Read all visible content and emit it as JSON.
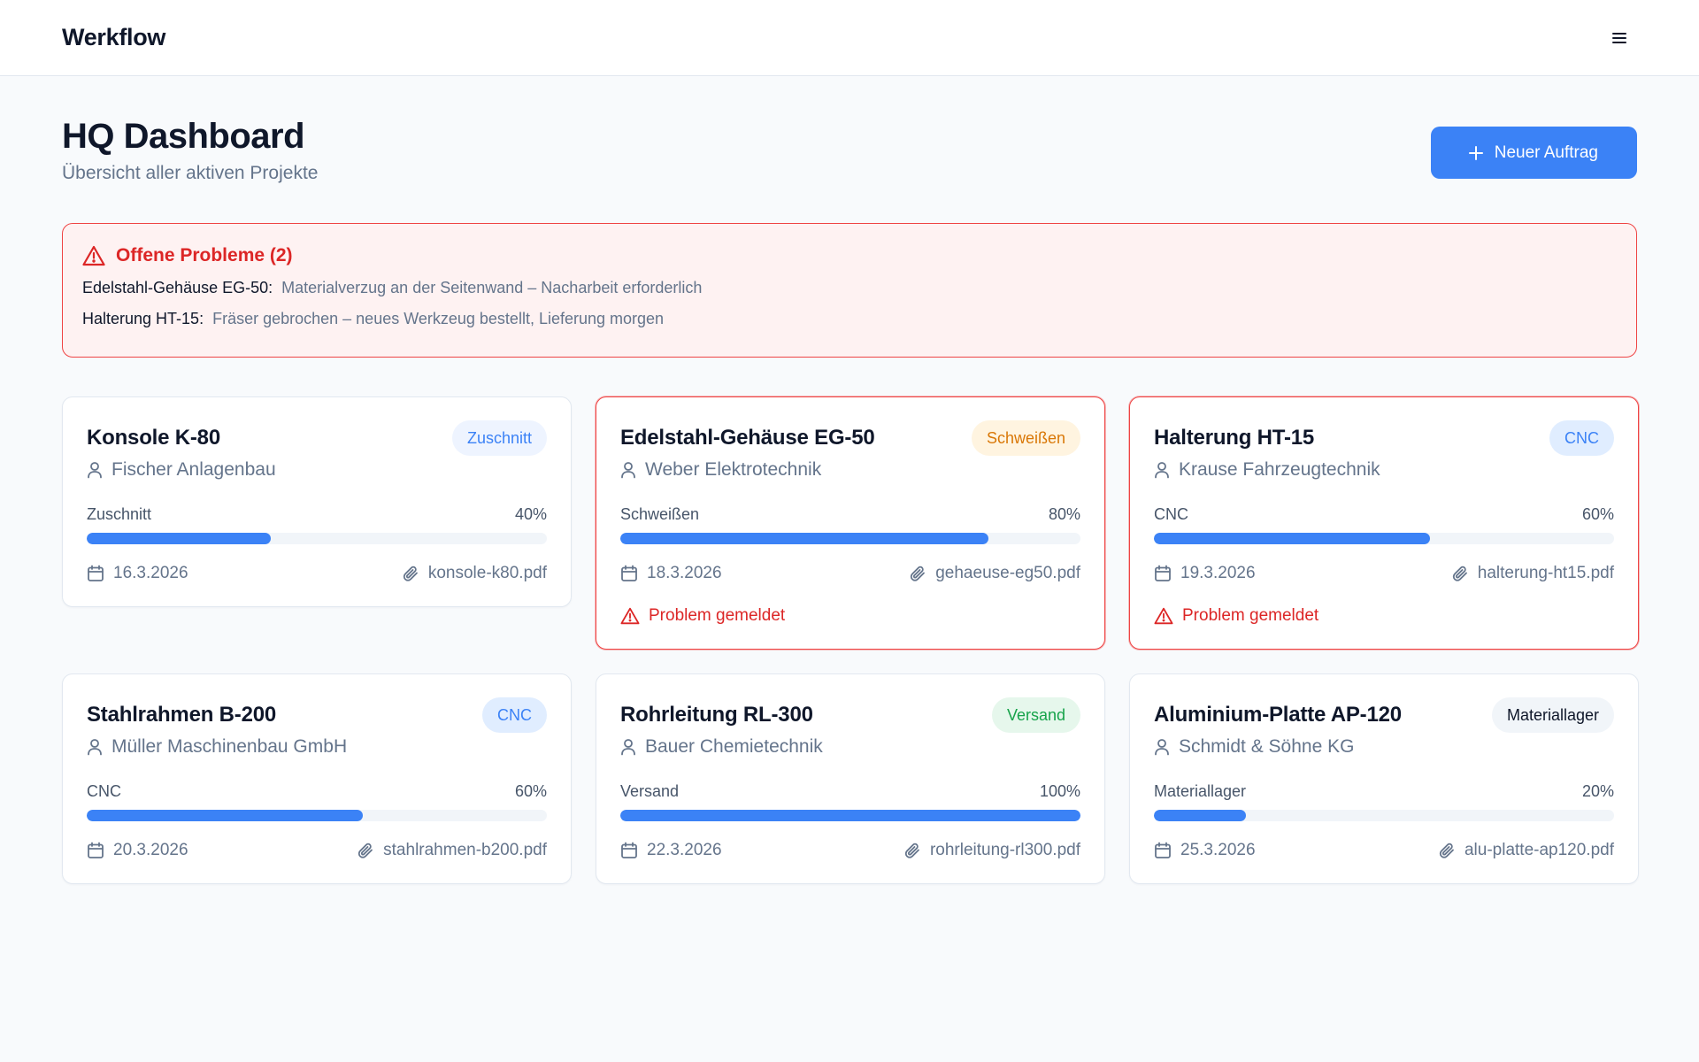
{
  "header": {
    "brand": "Werkflow",
    "menu_icon": "menu-icon"
  },
  "page": {
    "title": "HQ Dashboard",
    "subtitle": "Übersicht aller aktiven Projekte",
    "new_button_label": "Neuer Auftrag"
  },
  "alert": {
    "title": "Offene Probleme (2)",
    "items": [
      {
        "label": "Edelstahl-Gehäuse EG-50:",
        "message": "Materialverzug an der Seitenwand – Nacharbeit erforderlich"
      },
      {
        "label": "Halterung HT-15:",
        "message": "Fräser gebrochen – neues Werkzeug bestellt, Lieferung morgen"
      }
    ]
  },
  "colors": {
    "accent": "#3b82f6",
    "danger": "#dc2626",
    "badge_blue_bg": "#e0edff",
    "badge_blue_text": "#3b82f6",
    "badge_amber_bg": "#fff4e0",
    "badge_amber_text": "#d97706",
    "badge_green_bg": "#e6f7ec",
    "badge_green_text": "#16a34a",
    "badge_gray_bg": "#f1f5f9",
    "badge_gray_text": "#0f172a"
  },
  "projects": [
    {
      "title": "Konsole K-80",
      "badge": "Zuschnitt",
      "badge_color": "blue-light",
      "client": "Fischer Anlagenbau",
      "stage": "Zuschnitt",
      "progress_label": "40%",
      "progress": 0.4,
      "date": "16.3.2026",
      "file": "konsole-k80.pdf",
      "problem": false,
      "problem_label": ""
    },
    {
      "title": "Edelstahl-Gehäuse EG-50",
      "badge": "Schweißen",
      "badge_color": "amber",
      "client": "Weber Elektrotechnik",
      "stage": "Schweißen",
      "progress_label": "80%",
      "progress": 0.8,
      "date": "18.3.2026",
      "file": "gehaeuse-eg50.pdf",
      "problem": true,
      "problem_label": "Problem gemeldet"
    },
    {
      "title": "Halterung HT-15",
      "badge": "CNC",
      "badge_color": "blue",
      "client": "Krause Fahrzeugtechnik",
      "stage": "CNC",
      "progress_label": "60%",
      "progress": 0.6,
      "date": "19.3.2026",
      "file": "halterung-ht15.pdf",
      "problem": true,
      "problem_label": "Problem gemeldet"
    },
    {
      "title": "Stahlrahmen B-200",
      "badge": "CNC",
      "badge_color": "blue",
      "client": "Müller Maschinenbau GmbH",
      "stage": "CNC",
      "progress_label": "60%",
      "progress": 0.6,
      "date": "20.3.2026",
      "file": "stahlrahmen-b200.pdf",
      "problem": false,
      "problem_label": ""
    },
    {
      "title": "Rohrleitung RL-300",
      "badge": "Versand",
      "badge_color": "green",
      "client": "Bauer Chemietechnik",
      "stage": "Versand",
      "progress_label": "100%",
      "progress": 1.0,
      "date": "22.3.2026",
      "file": "rohrleitung-rl300.pdf",
      "problem": false,
      "problem_label": ""
    },
    {
      "title": "Aluminium-Platte AP-120",
      "badge": "Materiallager",
      "badge_color": "gray",
      "client": "Schmidt & Söhne KG",
      "stage": "Materiallager",
      "progress_label": "20%",
      "progress": 0.2,
      "date": "25.3.2026",
      "file": "alu-platte-ap120.pdf",
      "problem": false,
      "problem_label": ""
    }
  ]
}
